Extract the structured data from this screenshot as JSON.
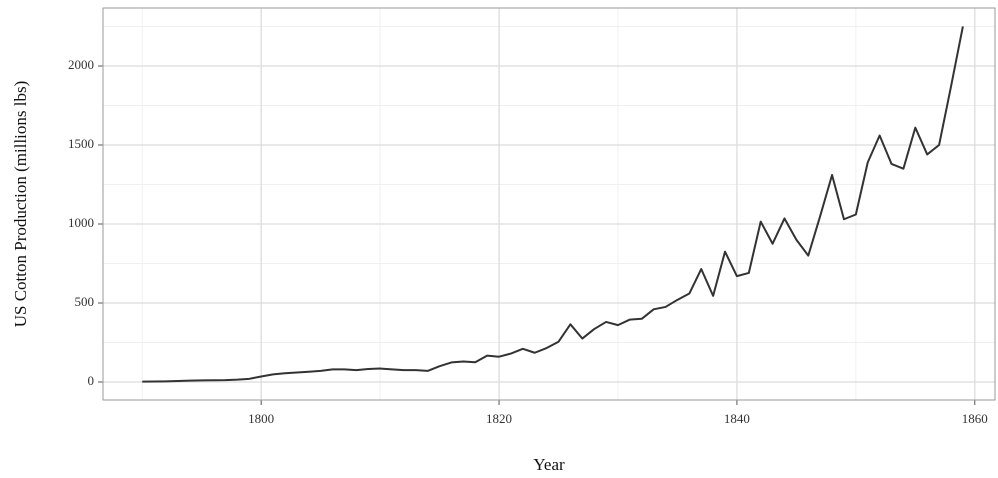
{
  "chart_data": {
    "type": "line",
    "x_label": "Year",
    "y_label": "US Cotton Production (millions lbs)",
    "x": [
      1790,
      1791,
      1792,
      1793,
      1794,
      1795,
      1796,
      1797,
      1798,
      1799,
      1800,
      1801,
      1802,
      1803,
      1804,
      1805,
      1806,
      1807,
      1808,
      1809,
      1810,
      1811,
      1812,
      1813,
      1814,
      1815,
      1816,
      1817,
      1818,
      1819,
      1820,
      1821,
      1822,
      1823,
      1824,
      1825,
      1826,
      1827,
      1828,
      1829,
      1830,
      1831,
      1832,
      1833,
      1834,
      1835,
      1836,
      1837,
      1838,
      1839,
      1840,
      1841,
      1842,
      1843,
      1844,
      1845,
      1846,
      1847,
      1848,
      1849,
      1850,
      1851,
      1852,
      1853,
      1854,
      1855,
      1856,
      1857,
      1858,
      1859
    ],
    "series": [
      {
        "name": "US Cotton Production",
        "color": "#333333",
        "values": [
          2,
          3,
          4,
          6,
          9,
          10,
          11,
          12,
          15,
          20,
          35,
          48,
          55,
          60,
          65,
          70,
          80,
          80,
          75,
          82,
          85,
          80,
          75,
          75,
          70,
          100,
          124,
          130,
          125,
          167,
          160,
          180,
          210,
          185,
          215,
          255,
          365,
          275,
          335,
          380,
          360,
          395,
          400,
          460,
          475,
          520,
          560,
          715,
          545,
          825,
          670,
          690,
          1015,
          875,
          1035,
          900,
          800,
          1050,
          1310,
          1030,
          1060,
          1390,
          1560,
          1380,
          1350,
          1610,
          1440,
          1500,
          1870,
          2250
        ]
      }
    ],
    "xlim": [
      1786.7,
      1861.7
    ],
    "xticks": [
      1800,
      1820,
      1840,
      1860
    ],
    "xminor": [
      1790,
      1810,
      1830,
      1850
    ],
    "ylim": [
      -114,
      2367
    ],
    "yticks": [
      0,
      500,
      1000,
      1500,
      2000
    ],
    "yminor": [
      250,
      750,
      1250,
      1750,
      2250
    ],
    "grid": true
  }
}
